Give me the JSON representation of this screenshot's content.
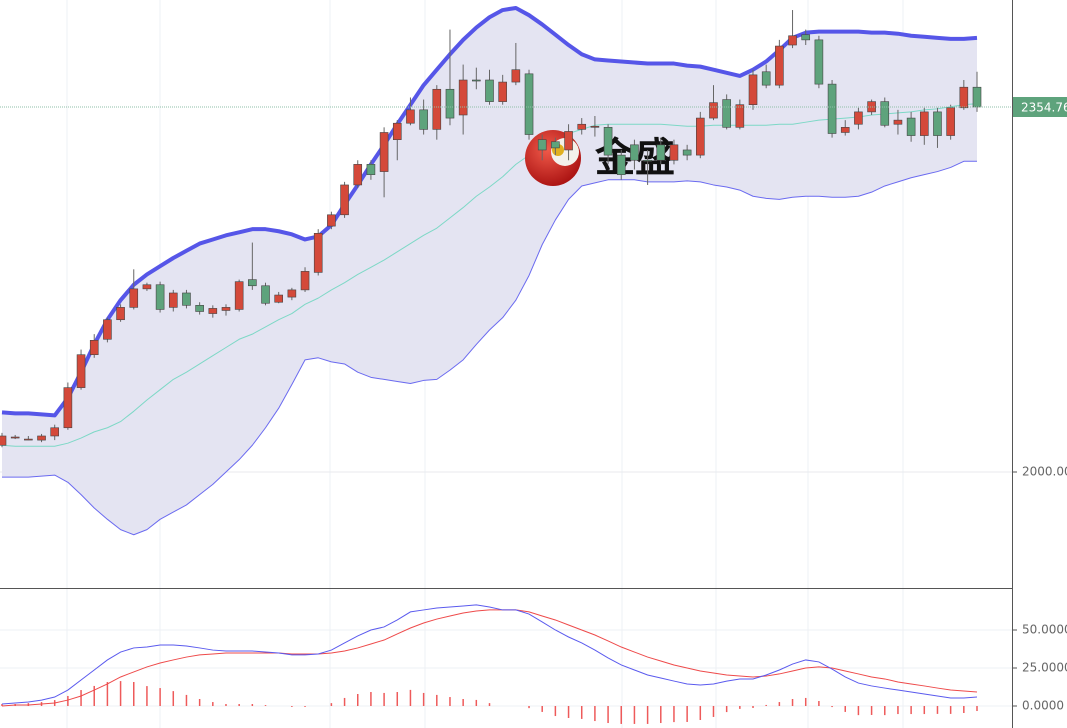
{
  "chart_data": {
    "type": "candlestick",
    "ylim": [
      1887.25,
      2458.76
    ],
    "yticks": [
      {
        "value": 2000,
        "label": "2000.00"
      }
    ],
    "last_price": 2354.76,
    "watermark": "金盛",
    "up_color": "#d4493a",
    "down_color": "#5ea37c",
    "open": [
      2026,
      2033,
      2032,
      2031,
      2035,
      2043,
      2082,
      2114,
      2129,
      2148,
      2160,
      2178,
      2182,
      2160,
      2174,
      2162,
      2154,
      2157,
      2158,
      2187,
      2181,
      2165,
      2170,
      2177,
      2194,
      2239,
      2250,
      2279,
      2299,
      2292,
      2323,
      2339,
      2352,
      2333,
      2372,
      2347,
      2381,
      2381,
      2360,
      2379,
      2387,
      2323,
      2321,
      2313,
      2333,
      2336,
      2335,
      2308,
      2318,
      2303,
      2318,
      2303,
      2313,
      2308,
      2344,
      2362,
      2335,
      2357,
      2389,
      2376,
      2415,
      2425,
      2420,
      2377,
      2330,
      2338,
      2350,
      2360,
      2338,
      2344,
      2327,
      2350,
      2327,
      2354,
      2374
    ],
    "high": [
      2038,
      2036,
      2035,
      2037,
      2046,
      2087,
      2119,
      2134,
      2150,
      2163,
      2197,
      2184,
      2185,
      2177,
      2177,
      2165,
      2162,
      2163,
      2187,
      2223,
      2184,
      2175,
      2179,
      2199,
      2236,
      2253,
      2282,
      2303,
      2303,
      2335,
      2342,
      2364,
      2362,
      2376,
      2430,
      2396,
      2393,
      2391,
      2386,
      2417,
      2391,
      2328,
      2325,
      2338,
      2344,
      2346,
      2338,
      2313,
      2323,
      2313,
      2325,
      2323,
      2318,
      2350,
      2376,
      2367,
      2362,
      2391,
      2396,
      2420,
      2449,
      2430,
      2424,
      2381,
      2342,
      2354,
      2362,
      2364,
      2352,
      2350,
      2354,
      2354,
      2357,
      2381,
      2389
    ],
    "low": [
      2024,
      2032,
      2031,
      2029,
      2031,
      2041,
      2080,
      2111,
      2126,
      2146,
      2158,
      2176,
      2155,
      2156,
      2159,
      2153,
      2150,
      2152,
      2156,
      2177,
      2162,
      2164,
      2167,
      2175,
      2191,
      2236,
      2247,
      2276,
      2284,
      2267,
      2303,
      2337,
      2328,
      2323,
      2337,
      2328,
      2372,
      2357,
      2357,
      2376,
      2323,
      2303,
      2308,
      2303,
      2328,
      2326,
      2299,
      2284,
      2294,
      2279,
      2299,
      2299,
      2303,
      2305,
      2342,
      2333,
      2333,
      2352,
      2373,
      2373,
      2412,
      2415,
      2373,
      2325,
      2327,
      2333,
      2347,
      2335,
      2328,
      2321,
      2318,
      2315,
      2323,
      2352,
      2350
    ],
    "close": [
      2035,
      2034,
      2032,
      2035,
      2043,
      2082,
      2114,
      2128,
      2148,
      2160,
      2178,
      2182,
      2158,
      2174,
      2162,
      2156,
      2159,
      2160,
      2185,
      2181,
      2164,
      2172,
      2177,
      2195,
      2232,
      2250,
      2279,
      2299,
      2289,
      2330,
      2339,
      2352,
      2333,
      2372,
      2344,
      2381,
      2380,
      2360,
      2379,
      2391,
      2328,
      2313,
      2315,
      2331,
      2338,
      2336,
      2308,
      2289,
      2303,
      2302,
      2303,
      2318,
      2308,
      2344,
      2359,
      2335,
      2357,
      2386,
      2376,
      2414,
      2424,
      2420,
      2377,
      2329,
      2335,
      2350,
      2360,
      2337,
      2342,
      2327,
      2350,
      2327,
      2354,
      2374,
      2354.76
    ],
    "bands": {
      "upper_color": "#5656e8",
      "middle_color": "#7dd8c6",
      "lower_color": "#6a6af0",
      "fill": "#e4e4f2",
      "upper": [
        2058,
        2057,
        2057,
        2056,
        2055,
        2072,
        2097,
        2124,
        2148,
        2167,
        2182,
        2192,
        2200,
        2208,
        2215,
        2222,
        2226,
        2230,
        2233,
        2236,
        2236,
        2234,
        2231,
        2226,
        2229,
        2240,
        2260,
        2279,
        2299,
        2318,
        2338,
        2357,
        2376,
        2391,
        2406,
        2420,
        2432,
        2442,
        2449,
        2451,
        2444,
        2435,
        2425,
        2415,
        2406,
        2401,
        2400,
        2399,
        2398,
        2397,
        2397,
        2397,
        2395,
        2394,
        2391,
        2388,
        2385,
        2391,
        2399,
        2410,
        2422,
        2427,
        2428,
        2428,
        2428,
        2428,
        2427,
        2427,
        2426,
        2424,
        2423,
        2422,
        2421,
        2421,
        2422
      ],
      "middle": [
        2026,
        2025,
        2025,
        2025,
        2025,
        2028,
        2033,
        2039,
        2043,
        2049,
        2059,
        2070,
        2080,
        2090,
        2097,
        2105,
        2113,
        2121,
        2129,
        2134,
        2141,
        2148,
        2154,
        2163,
        2169,
        2177,
        2184,
        2192,
        2199,
        2206,
        2214,
        2222,
        2230,
        2237,
        2247,
        2257,
        2268,
        2277,
        2287,
        2299,
        2308,
        2318,
        2325,
        2329,
        2333,
        2337,
        2338,
        2338,
        2338,
        2338,
        2338,
        2337,
        2336,
        2336,
        2337,
        2337,
        2337,
        2337,
        2337,
        2338,
        2338,
        2340,
        2342,
        2343,
        2344,
        2345,
        2347,
        2348,
        2349,
        2350,
        2352,
        2353,
        2355,
        2357,
        2358
      ],
      "lower": [
        1995,
        1995,
        1995,
        1996,
        1997,
        1990,
        1978,
        1965,
        1954,
        1944,
        1939,
        1944,
        1954,
        1961,
        1968,
        1978,
        1988,
        2000,
        2012,
        2026,
        2043,
        2062,
        2085,
        2109,
        2111,
        2107,
        2105,
        2097,
        2092,
        2090,
        2088,
        2086,
        2089,
        2090,
        2099,
        2109,
        2124,
        2138,
        2150,
        2167,
        2191,
        2221,
        2245,
        2265,
        2278,
        2281,
        2284,
        2284,
        2284,
        2282,
        2282,
        2282,
        2283,
        2282,
        2279,
        2277,
        2274,
        2268,
        2266,
        2265,
        2267,
        2268,
        2268,
        2267,
        2267,
        2268,
        2272,
        2278,
        2282,
        2286,
        2289,
        2292,
        2296,
        2302,
        2302
      ]
    },
    "macd": {
      "ylim": [
        -14.47,
        77.63
      ],
      "yticks": [
        {
          "value": 50,
          "label": "50.0000"
        },
        {
          "value": 25,
          "label": "25.0000"
        },
        {
          "value": 0,
          "label": "0.0000"
        }
      ],
      "dif_color": "#5a5aee",
      "dea_color": "#ee4a4a",
      "hist_color": "#ee5a5a",
      "dif": [
        1.3,
        2.0,
        2.6,
        3.9,
        5.9,
        10.5,
        17.1,
        23.7,
        30.3,
        35.5,
        38.2,
        38.8,
        40.1,
        40.1,
        39.5,
        38.2,
        36.8,
        36.2,
        36.2,
        36.2,
        35.5,
        34.9,
        33.6,
        33.6,
        34.2,
        36.8,
        41.5,
        46.1,
        50.0,
        52.0,
        56.6,
        61.9,
        63.2,
        64.5,
        65.1,
        65.8,
        66.5,
        65.1,
        63.2,
        63.2,
        60.5,
        55.3,
        50.0,
        45.4,
        41.5,
        36.8,
        31.6,
        27.0,
        23.7,
        20.4,
        18.4,
        16.4,
        14.5,
        13.8,
        14.5,
        16.4,
        17.8,
        17.8,
        20.4,
        23.7,
        27.6,
        30.3,
        29.0,
        24.3,
        19.1,
        15.1,
        13.2,
        11.8,
        10.5,
        9.2,
        7.9,
        6.6,
        5.3,
        5.3,
        5.9
      ],
      "dea": [
        0.0,
        0.7,
        0.7,
        1.3,
        2.0,
        3.9,
        6.6,
        10.5,
        14.5,
        19.1,
        22.4,
        25.7,
        28.3,
        30.3,
        32.2,
        33.6,
        34.2,
        34.9,
        34.9,
        34.9,
        34.9,
        34.9,
        34.2,
        34.2,
        34.2,
        34.9,
        36.2,
        38.2,
        40.8,
        43.4,
        47.4,
        51.3,
        54.6,
        57.2,
        59.2,
        61.2,
        62.5,
        63.2,
        63.2,
        63.2,
        61.9,
        59.2,
        56.6,
        53.3,
        50.0,
        46.7,
        42.8,
        38.8,
        35.5,
        32.2,
        29.6,
        27.0,
        25.0,
        23.0,
        21.7,
        20.4,
        19.7,
        19.1,
        19.7,
        21.1,
        23.0,
        25.0,
        25.7,
        25.0,
        23.0,
        21.1,
        19.1,
        17.8,
        15.8,
        14.5,
        13.2,
        11.8,
        10.5,
        9.9,
        9.2
      ],
      "hist": [
        1.3,
        1.3,
        1.9,
        2.6,
        3.9,
        6.6,
        10.5,
        13.2,
        15.8,
        16.4,
        15.8,
        13.1,
        11.8,
        9.8,
        7.3,
        4.6,
        2.6,
        1.3,
        1.3,
        1.3,
        0.6,
        0.0,
        -0.6,
        -0.6,
        0.0,
        1.9,
        5.3,
        7.9,
        9.2,
        8.6,
        9.2,
        10.6,
        8.6,
        7.3,
        5.9,
        4.6,
        4.0,
        1.9,
        0.0,
        0.0,
        -1.4,
        -3.9,
        -6.6,
        -7.9,
        -8.5,
        -9.9,
        -11.2,
        -11.8,
        -11.8,
        -11.8,
        -11.2,
        -10.6,
        -10.5,
        -9.2,
        -7.2,
        -4.0,
        -1.9,
        -1.3,
        0.7,
        2.6,
        4.6,
        5.3,
        3.3,
        -0.7,
        -3.9,
        -6.0,
        -5.9,
        -6.0,
        -5.3,
        -5.3,
        -5.3,
        -5.2,
        -5.2,
        -4.6,
        -3.3
      ]
    }
  }
}
